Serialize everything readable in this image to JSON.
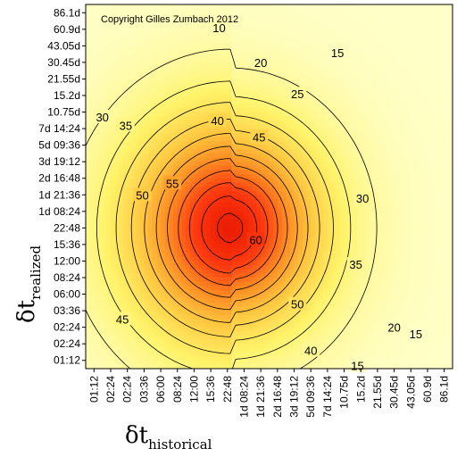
{
  "chart_data": {
    "type": "heatmap",
    "copyright": "Copyright Gilles Zumbach 2012",
    "x_axis": {
      "symbol": "δt",
      "subscript": "historical",
      "ticks": [
        "01:12",
        "02:24",
        "02:24",
        "03:36",
        "06:00",
        "08:24",
        "12:00",
        "15:36",
        "22:48",
        "1d 08:24",
        "1d 21:36",
        "2d 16:48",
        "3d 19:12",
        "5d 09:36",
        "7d 14:24",
        "10.75d",
        "15.2d",
        "21.55d",
        "30.45d",
        "43.05d",
        "60.9d",
        "86.1d"
      ]
    },
    "y_axis": {
      "symbol": "δt",
      "subscript": "realized",
      "ticks_top_to_bottom": [
        "86.1d",
        "60.9d",
        "43.05d",
        "30.45d",
        "21.55d",
        "15.2d",
        "10.75d",
        "7d 14:24",
        "5d 09:36",
        "3d 19:12",
        "2d 16:48",
        "1d 21:36",
        "1d 08:24",
        "22:48",
        "15:36",
        "12:00",
        "08:24",
        "06:00",
        "03:36",
        "02:24",
        "02:24",
        "01:12"
      ]
    },
    "peak": {
      "x_index": 8.2,
      "y_index_from_top": 13,
      "value": 62
    },
    "contour_levels": [
      10,
      15,
      20,
      25,
      30,
      35,
      40,
      45,
      50,
      55,
      60
    ],
    "contour_labels": [
      {
        "text": "10",
        "x_index": 7.5,
        "y_index_from_top": 0.9
      },
      {
        "text": "15",
        "x_index": 14.6,
        "y_index_from_top": 2.4
      },
      {
        "text": "20",
        "x_index": 10.0,
        "y_index_from_top": 3.0
      },
      {
        "text": "25",
        "x_index": 12.2,
        "y_index_from_top": 4.9
      },
      {
        "text": "30",
        "x_index": 0.5,
        "y_index_from_top": 6.3
      },
      {
        "text": "35",
        "x_index": 1.9,
        "y_index_from_top": 6.8
      },
      {
        "text": "40",
        "x_index": 7.4,
        "y_index_from_top": 6.5
      },
      {
        "text": "45",
        "x_index": 9.9,
        "y_index_from_top": 7.5
      },
      {
        "text": "55",
        "x_index": 4.7,
        "y_index_from_top": 10.3
      },
      {
        "text": "50",
        "x_index": 2.9,
        "y_index_from_top": 11.0
      },
      {
        "text": "60",
        "x_index": 9.7,
        "y_index_from_top": 13.7
      },
      {
        "text": "30",
        "x_index": 16.1,
        "y_index_from_top": 11.2
      },
      {
        "text": "35",
        "x_index": 15.7,
        "y_index_from_top": 15.2
      },
      {
        "text": "50",
        "x_index": 12.2,
        "y_index_from_top": 17.6
      },
      {
        "text": "45",
        "x_index": 1.7,
        "y_index_from_top": 18.5
      },
      {
        "text": "20",
        "x_index": 18.0,
        "y_index_from_top": 19.0
      },
      {
        "text": "15",
        "x_index": 19.3,
        "y_index_from_top": 19.4
      },
      {
        "text": "40",
        "x_index": 13.0,
        "y_index_from_top": 20.4
      },
      {
        "text": "15",
        "x_index": 15.8,
        "y_index_from_top": 21.3
      }
    ],
    "colormap": [
      "#ffffc8",
      "#fff36a",
      "#ffc840",
      "#ff8a22",
      "#ff3a10",
      "#e81800"
    ],
    "value_range": [
      5,
      64
    ],
    "grid": false
  }
}
